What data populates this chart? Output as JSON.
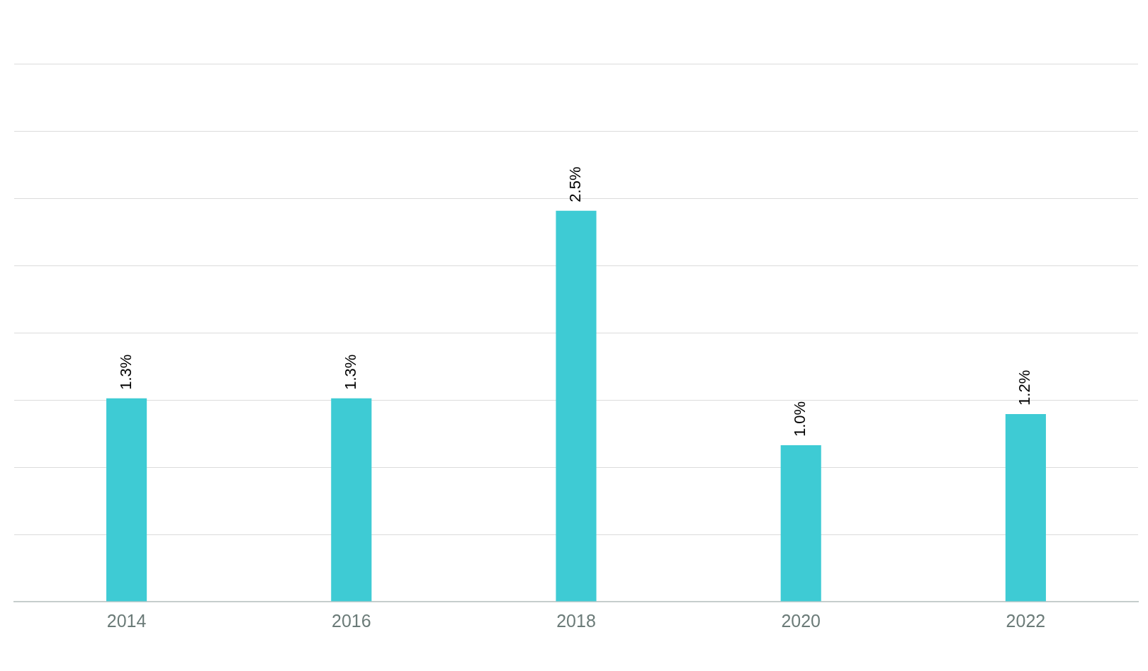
{
  "chart_data": {
    "type": "bar",
    "categories": [
      "2014",
      "2016",
      "2018",
      "2020",
      "2022"
    ],
    "values": [
      1.3,
      1.3,
      2.5,
      1.0,
      1.2
    ],
    "color": "#3ecbd4",
    "value_labels": [
      "1.3%",
      "1.3%",
      "2.5%",
      "1.0%",
      "1.2%"
    ],
    "ylim": [
      0,
      3.44
    ],
    "yticks": [
      {
        "value": 0,
        "label": null
      },
      {
        "value": 0.43,
        "label": null
      },
      {
        "value": 0.86,
        "label": null
      },
      {
        "value": 1.29,
        "label": null
      },
      {
        "value": 1.72,
        "label": null
      },
      {
        "value": 2.15,
        "label": null
      },
      {
        "value": 2.58,
        "label": null
      },
      {
        "value": 3.01,
        "label": null
      },
      {
        "value": 3.44,
        "label": null
      }
    ],
    "grid": "y",
    "tick_labels": "x",
    "legend": false
  }
}
